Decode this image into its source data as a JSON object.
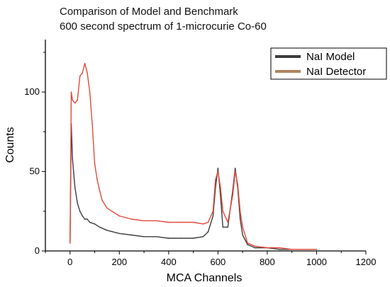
{
  "chart_data": {
    "type": "line",
    "title": "Comparison of Model and Benchmark",
    "subtitle": "600 second spectrum of 1-microcurie Co-60",
    "xlabel": "MCA Channels",
    "ylabel": "Counts",
    "xlim": [
      -100,
      1200
    ],
    "ylim": [
      0,
      133
    ],
    "xticks": [
      0,
      200,
      400,
      600,
      800,
      1000,
      1200
    ],
    "yticks": [
      0,
      50,
      100
    ],
    "grid": false,
    "legend_position": "top-right",
    "series": [
      {
        "name": "NaI Model",
        "color": "#3d3d3d",
        "x": [
          0,
          5,
          10,
          20,
          30,
          40,
          50,
          60,
          70,
          80,
          100,
          120,
          150,
          200,
          250,
          300,
          350,
          400,
          450,
          500,
          540,
          560,
          580,
          590,
          600,
          610,
          620,
          640,
          660,
          670,
          680,
          690,
          700,
          720,
          750,
          800,
          850,
          900,
          950,
          1000
        ],
        "y": [
          5,
          80,
          58,
          40,
          30,
          25,
          22,
          20,
          20,
          18,
          17,
          15,
          13,
          11,
          10,
          9,
          9,
          8,
          8,
          8,
          9,
          12,
          22,
          40,
          52,
          35,
          15,
          15,
          38,
          52,
          40,
          20,
          10,
          4,
          2,
          2,
          1,
          1,
          1,
          1
        ]
      },
      {
        "name": "NaI Detector",
        "color": "#e24a3b",
        "x": [
          0,
          5,
          10,
          20,
          30,
          40,
          50,
          60,
          70,
          80,
          90,
          100,
          110,
          120,
          130,
          150,
          200,
          250,
          300,
          350,
          400,
          450,
          500,
          540,
          560,
          580,
          590,
          600,
          610,
          620,
          640,
          660,
          670,
          680,
          690,
          700,
          720,
          750,
          800,
          850,
          900,
          950,
          1000
        ],
        "y": [
          5,
          100,
          95,
          93,
          95,
          110,
          112,
          118,
          112,
          100,
          80,
          55,
          45,
          38,
          32,
          27,
          22,
          20,
          19,
          19,
          18,
          18,
          18,
          17,
          18,
          25,
          45,
          50,
          40,
          25,
          18,
          35,
          50,
          42,
          25,
          15,
          5,
          3,
          2,
          2,
          1,
          1,
          1
        ]
      }
    ]
  }
}
